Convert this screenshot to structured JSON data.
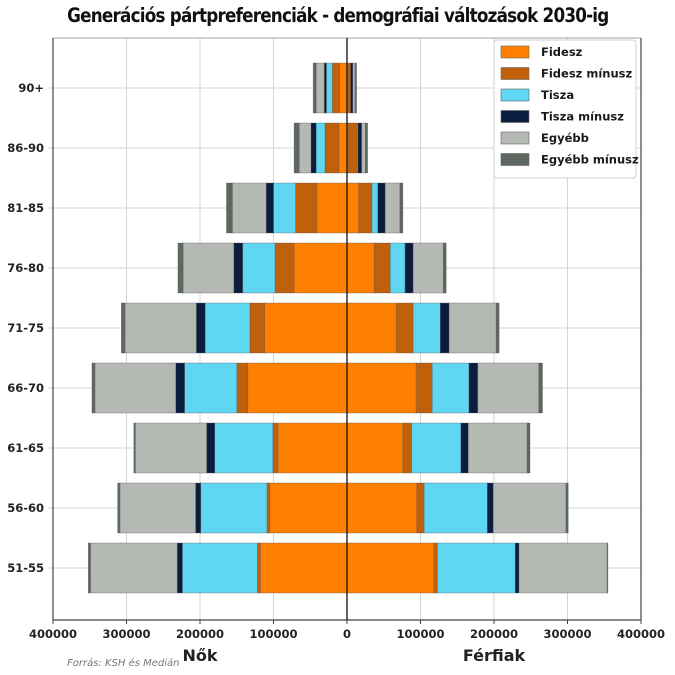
{
  "chart_data": {
    "type": "bar",
    "orientation": "horizontal-stacked-pyramid",
    "title": "Generációs pártpreferenciák - demográfiai változások 2030-ig",
    "categories": [
      "90+",
      "86-90",
      "81-85",
      "76-80",
      "71-75",
      "66-70",
      "61-65",
      "56-60",
      "51-55"
    ],
    "xlabel_left": "Nők",
    "xlabel_right": "Férfiak",
    "xlim": [
      -400000,
      400000
    ],
    "xticks": [
      -400000,
      -300000,
      -200000,
      -100000,
      0,
      100000,
      200000,
      300000,
      400000
    ],
    "xtick_labels": [
      "400000",
      "300000",
      "200000",
      "100000",
      "0",
      "100000",
      "200000",
      "300000",
      "400000"
    ],
    "grid": true,
    "legend_position": "top-right",
    "series": [
      {
        "name": "Fidesz",
        "color": "#FF8000",
        "female": [
          10000,
          11000,
          41000,
          72000,
          112000,
          135000,
          94000,
          105000,
          118000
        ],
        "male": [
          2000,
          2000,
          16000,
          37000,
          67000,
          94000,
          76000,
          95000,
          118000
        ]
      },
      {
        "name": "Fidesz mínusz",
        "color": "#C0600A",
        "female": [
          10000,
          19000,
          29000,
          26000,
          20000,
          15000,
          7000,
          4000,
          4000
        ],
        "male": [
          3000,
          12000,
          18000,
          22000,
          23000,
          22000,
          12000,
          10000,
          5000
        ]
      },
      {
        "name": "Tisza",
        "color": "#5FD6F2",
        "female": [
          8000,
          12000,
          30000,
          44000,
          61000,
          71000,
          79000,
          90000,
          102000
        ],
        "male": [
          0,
          1000,
          8000,
          20000,
          37000,
          50000,
          67000,
          86000,
          106000
        ]
      },
      {
        "name": "Tisza mínusz",
        "color": "#0B1D3F",
        "female": [
          3000,
          7000,
          10000,
          12000,
          12000,
          12000,
          11000,
          7000,
          7000
        ],
        "male": [
          3000,
          5000,
          10000,
          11000,
          12000,
          12000,
          10000,
          8000,
          5000
        ]
      },
      {
        "name": "Egyébb",
        "color": "#B4B9B4",
        "female": [
          11000,
          16000,
          46000,
          69000,
          97000,
          110000,
          97000,
          103000,
          118000
        ],
        "male": [
          3000,
          5000,
          20000,
          41000,
          64000,
          83000,
          80000,
          99000,
          120000
        ]
      },
      {
        "name": "Egyébb mínusz",
        "color": "#5E6860",
        "female": [
          4000,
          7000,
          8000,
          7000,
          5000,
          4000,
          2000,
          3000,
          3000
        ],
        "male": [
          2000,
          3000,
          4000,
          4000,
          4000,
          5000,
          4000,
          3000,
          1000
        ]
      }
    ],
    "source": "Forrás: KSH és Medián"
  }
}
